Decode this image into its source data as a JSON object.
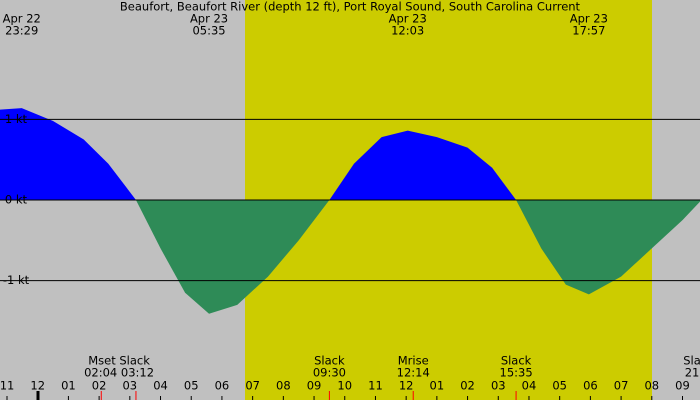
{
  "chart_data": {
    "type": "area",
    "title": "Beaufort, Beaufort River (depth 12 ft), Port Royal Sound, South Carolina Current",
    "x": [
      22.772,
      23.48,
      24.5,
      25.5,
      26.3,
      27.2,
      28.0,
      28.8,
      29.58,
      30.5,
      31.5,
      32.5,
      33.5,
      34.3,
      35.2,
      36.05,
      37.0,
      38.0,
      38.8,
      39.58,
      40.4,
      41.2,
      41.95,
      43.0,
      44.0,
      45.0,
      45.57
    ],
    "values": [
      1.12,
      1.14,
      0.98,
      0.75,
      0.45,
      0,
      -0.6,
      -1.15,
      -1.41,
      -1.3,
      -0.95,
      -0.5,
      0,
      0.45,
      0.78,
      0.86,
      0.78,
      0.65,
      0.4,
      0,
      -0.6,
      -1.05,
      -1.17,
      -0.95,
      -0.6,
      -0.25,
      -0.02
    ],
    "flood_color": "#0000ff",
    "ebb_color": "#2e8b57",
    "xlim": [
      22.772,
      45.57
    ],
    "ylim": [
      -2.48,
      2.48
    ],
    "yticks": [
      {
        "value": 1,
        "label": "1 kt"
      },
      {
        "value": 0,
        "label": "0 kt"
      },
      {
        "value": -1,
        "label": "-1 kt"
      }
    ],
    "xticks": [
      {
        "value": 23,
        "label": "11"
      },
      {
        "value": 24,
        "label": "12"
      },
      {
        "value": 25,
        "label": "01"
      },
      {
        "value": 26,
        "label": "02"
      },
      {
        "value": 27,
        "label": "03"
      },
      {
        "value": 28,
        "label": "04"
      },
      {
        "value": 29,
        "label": "05"
      },
      {
        "value": 30,
        "label": "06"
      },
      {
        "value": 31,
        "label": "07"
      },
      {
        "value": 32,
        "label": "08"
      },
      {
        "value": 33,
        "label": "09"
      },
      {
        "value": 34,
        "label": "10"
      },
      {
        "value": 35,
        "label": "11"
      },
      {
        "value": 36,
        "label": "12"
      },
      {
        "value": 37,
        "label": "01"
      },
      {
        "value": 38,
        "label": "02"
      },
      {
        "value": 39,
        "label": "03"
      },
      {
        "value": 40,
        "label": "04"
      },
      {
        "value": 41,
        "label": "05"
      },
      {
        "value": 42,
        "label": "06"
      },
      {
        "value": 43,
        "label": "07"
      },
      {
        "value": 44,
        "label": "08"
      },
      {
        "value": 45,
        "label": "09"
      }
    ],
    "top_labels": [
      {
        "date": "Apr 22",
        "time": "23:29",
        "hour": 23.48
      },
      {
        "date": "Apr 23",
        "time": "05:35",
        "hour": 29.58
      },
      {
        "date": "Apr 23",
        "time": "12:03",
        "hour": 36.05
      },
      {
        "date": "Apr 23",
        "time": "17:57",
        "hour": 41.95
      }
    ],
    "bottom_labels": [
      {
        "label": "Mset Slack",
        "time": "02:04 03:12",
        "hour": 26.65
      },
      {
        "label": "Slack",
        "time": "09:30",
        "hour": 33.5
      },
      {
        "label": "Mrise",
        "time": "12:14",
        "hour": 36.23
      },
      {
        "label": "Slack",
        "time": "15:35",
        "hour": 39.58
      },
      {
        "label": "Sla",
        "time": "21",
        "hour": 45.31
      }
    ],
    "event_marks": [
      26.07,
      27.2,
      33.5,
      36.23,
      39.58
    ]
  }
}
